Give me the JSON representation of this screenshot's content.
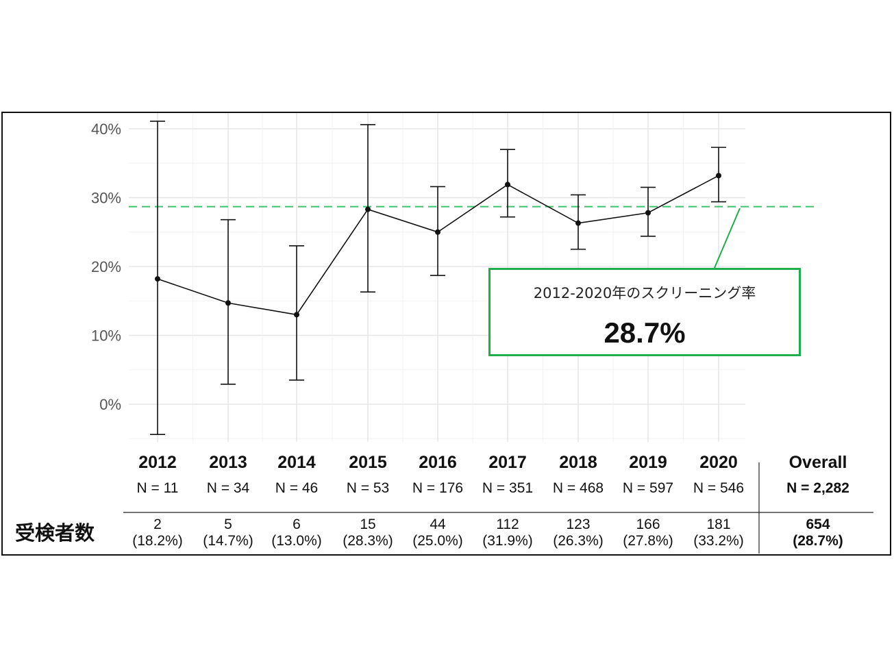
{
  "chart_data": {
    "type": "line",
    "title": "",
    "xlabel": "",
    "ylabel": "",
    "ylim": [
      -5,
      42
    ],
    "y_ticks": [
      "0%",
      "10%",
      "20%",
      "30%",
      "40%"
    ],
    "y_tick_values": [
      0,
      10,
      20,
      30,
      40
    ],
    "categories": [
      "2012",
      "2013",
      "2014",
      "2015",
      "2016",
      "2017",
      "2018",
      "2019",
      "2020"
    ],
    "n_labels": [
      "N = 11",
      "N = 34",
      "N = 46",
      "N = 53",
      "N = 176",
      "N = 351",
      "N = 468",
      "N = 597",
      "N = 546"
    ],
    "series": [
      {
        "name": "screening rate",
        "values": [
          18.2,
          14.7,
          13.0,
          28.3,
          25.0,
          31.9,
          26.3,
          27.8,
          33.2
        ],
        "ci_upper": [
          41.1,
          26.8,
          23.0,
          40.6,
          31.6,
          37.0,
          30.4,
          31.5,
          37.3
        ],
        "ci_lower": [
          -4.4,
          2.9,
          3.5,
          16.3,
          18.7,
          27.2,
          22.5,
          24.4,
          29.4
        ]
      }
    ],
    "reference_line": 28.7,
    "grid": true,
    "colors": {
      "line": "#111111",
      "reference": "#3cc26a",
      "annotation_border": "#1fae4b"
    }
  },
  "annotation": {
    "title": "2012-2020年のスクリーニング率",
    "value": "28.7%"
  },
  "table": {
    "row_label": "受検者数",
    "counts": [
      "2",
      "5",
      "6",
      "15",
      "44",
      "112",
      "123",
      "166",
      "181"
    ],
    "percents": [
      "(18.2%)",
      "(14.7%)",
      "(13.0%)",
      "(28.3%)",
      "(25.0%)",
      "(31.9%)",
      "(26.3%)",
      "(27.8%)",
      "(33.2%)"
    ],
    "overall": {
      "label": "Overall",
      "n": "N = 2,282",
      "count": "654",
      "percent": "(28.7%)"
    }
  }
}
